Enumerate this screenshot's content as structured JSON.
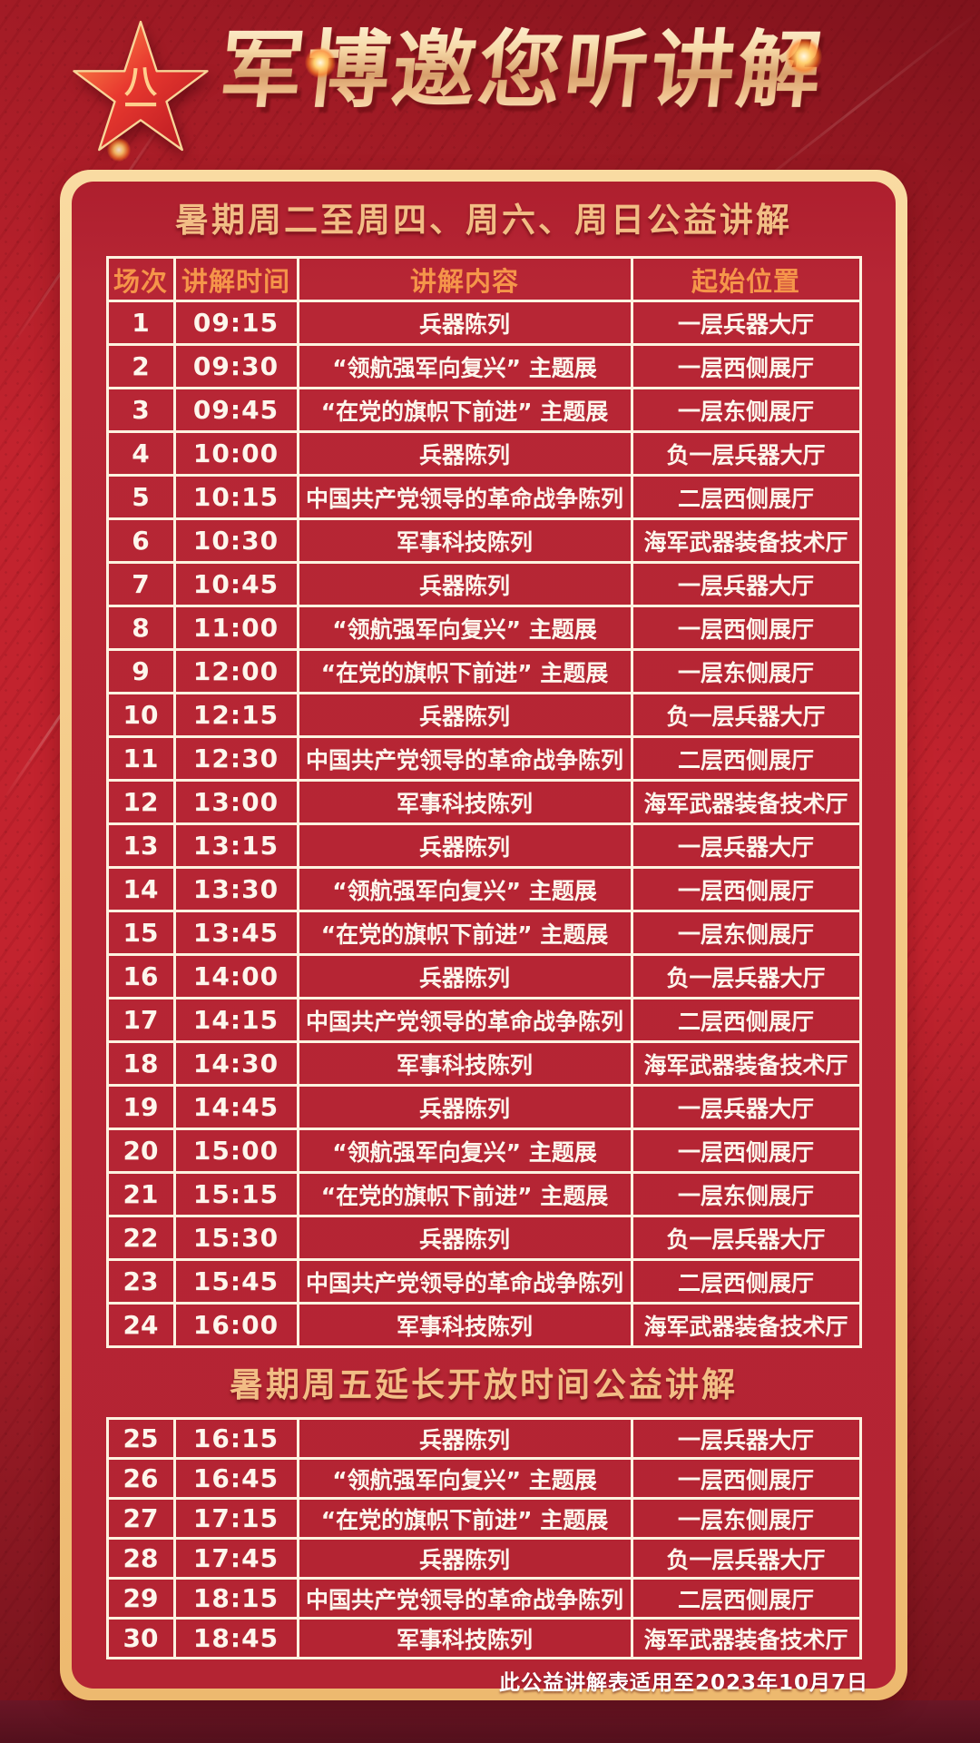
{
  "poster_title": "军博邀您听讲解",
  "star": {
    "emblem_text_top": "八",
    "emblem_text_bottom": "一"
  },
  "schedule": {
    "section1": {
      "title": "暑期周二至周四、周六、周日公益讲解",
      "columns": [
        "场次",
        "讲解时间",
        "讲解内容",
        "起始位置"
      ],
      "rows": [
        [
          "1",
          "09:15",
          "兵器陈列",
          "一层兵器大厅"
        ],
        [
          "2",
          "09:30",
          "“领航强军向复兴” 主题展",
          "一层西侧展厅"
        ],
        [
          "3",
          "09:45",
          "“在党的旗帜下前进” 主题展",
          "一层东侧展厅"
        ],
        [
          "4",
          "10:00",
          "兵器陈列",
          "负一层兵器大厅"
        ],
        [
          "5",
          "10:15",
          "中国共产党领导的革命战争陈列",
          "二层西侧展厅"
        ],
        [
          "6",
          "10:30",
          "军事科技陈列",
          "海军武器装备技术厅"
        ],
        [
          "7",
          "10:45",
          "兵器陈列",
          "一层兵器大厅"
        ],
        [
          "8",
          "11:00",
          "“领航强军向复兴” 主题展",
          "一层西侧展厅"
        ],
        [
          "9",
          "12:00",
          "“在党的旗帜下前进” 主题展",
          "一层东侧展厅"
        ],
        [
          "10",
          "12:15",
          "兵器陈列",
          "负一层兵器大厅"
        ],
        [
          "11",
          "12:30",
          "中国共产党领导的革命战争陈列",
          "二层西侧展厅"
        ],
        [
          "12",
          "13:00",
          "军事科技陈列",
          "海军武器装备技术厅"
        ],
        [
          "13",
          "13:15",
          "兵器陈列",
          "一层兵器大厅"
        ],
        [
          "14",
          "13:30",
          "“领航强军向复兴” 主题展",
          "一层西侧展厅"
        ],
        [
          "15",
          "13:45",
          "“在党的旗帜下前进” 主题展",
          "一层东侧展厅"
        ],
        [
          "16",
          "14:00",
          "兵器陈列",
          "负一层兵器大厅"
        ],
        [
          "17",
          "14:15",
          "中国共产党领导的革命战争陈列",
          "二层西侧展厅"
        ],
        [
          "18",
          "14:30",
          "军事科技陈列",
          "海军武器装备技术厅"
        ],
        [
          "19",
          "14:45",
          "兵器陈列",
          "一层兵器大厅"
        ],
        [
          "20",
          "15:00",
          "“领航强军向复兴” 主题展",
          "一层西侧展厅"
        ],
        [
          "21",
          "15:15",
          "“在党的旗帜下前进” 主题展",
          "一层东侧展厅"
        ],
        [
          "22",
          "15:30",
          "兵器陈列",
          "负一层兵器大厅"
        ],
        [
          "23",
          "15:45",
          "中国共产党领导的革命战争陈列",
          "二层西侧展厅"
        ],
        [
          "24",
          "16:00",
          "军事科技陈列",
          "海军武器装备技术厅"
        ]
      ]
    },
    "section2": {
      "title": "暑期周五延长开放时间公益讲解",
      "rows": [
        [
          "25",
          "16:15",
          "兵器陈列",
          "一层兵器大厅"
        ],
        [
          "26",
          "16:45",
          "“领航强军向复兴” 主题展",
          "一层西侧展厅"
        ],
        [
          "27",
          "17:15",
          "“在党的旗帜下前进” 主题展",
          "一层东侧展厅"
        ],
        [
          "28",
          "17:45",
          "兵器陈列",
          "负一层兵器大厅"
        ],
        [
          "29",
          "18:15",
          "中国共产党领导的革命战争陈列",
          "二层西侧展厅"
        ],
        [
          "30",
          "18:45",
          "军事科技陈列",
          "海军武器装备技术厅"
        ]
      ]
    },
    "footer_note": "此公益讲解表适用至2023年10月7日"
  },
  "colors": {
    "background_red": "#c2232e",
    "panel_red": "#b42433",
    "border_cream": "#f3c885",
    "header_orange": "#f5954a",
    "section_title_gold": "#f2bd85",
    "body_text": "#fdf6ec",
    "bottom_maroon": "#5c1220"
  }
}
